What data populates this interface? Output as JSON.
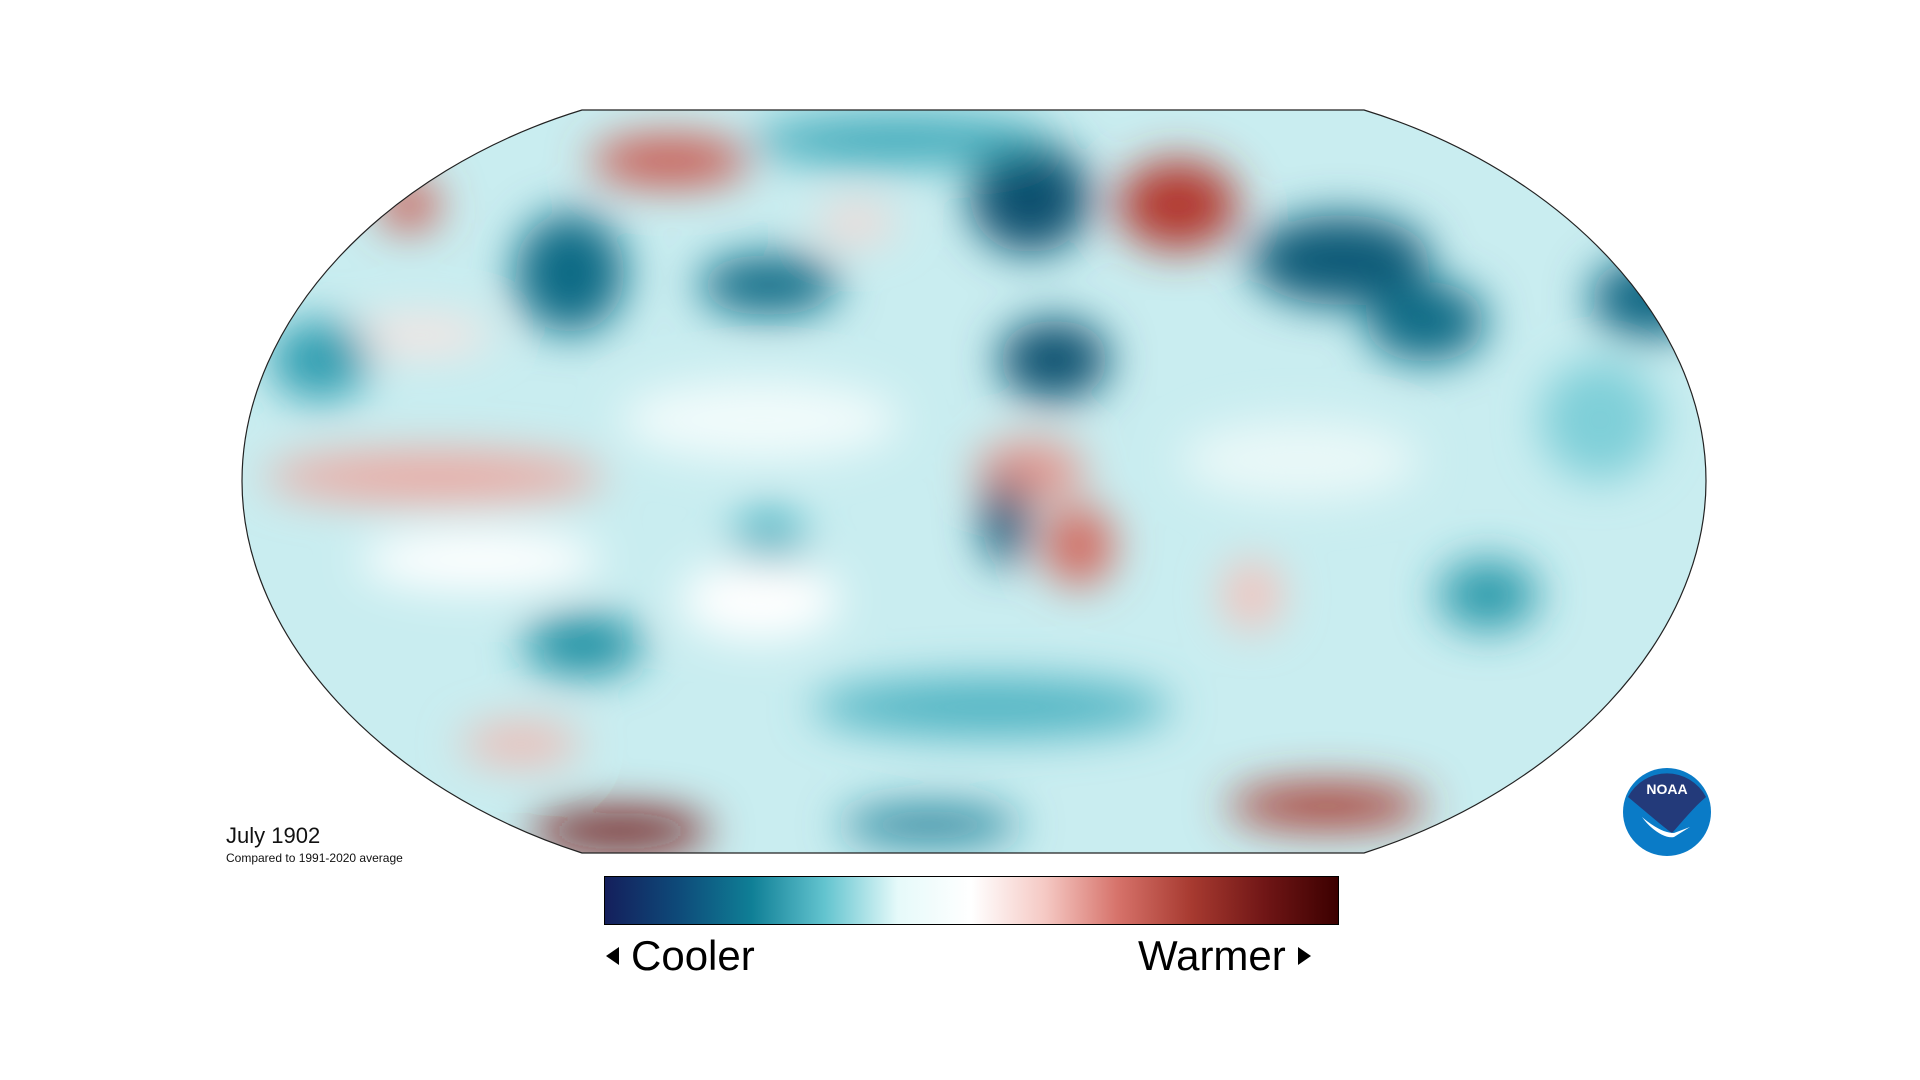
{
  "map": {
    "title": "July 1902",
    "subtitle": "Compared to 1991-2020 average",
    "projection": "Robinson",
    "variable": "temperature anomaly"
  },
  "legend": {
    "cooler_label": "Cooler",
    "warmer_label": "Warmer",
    "colors": [
      "#141f5c",
      "#0e4a79",
      "#0f7f96",
      "#63c4cf",
      "#e6fafa",
      "#ffffff",
      "#f5c9c4",
      "#d6726a",
      "#a73a30",
      "#701616",
      "#3c0000"
    ]
  },
  "logo": {
    "text": "NOAA",
    "colors": {
      "top": "#233a7a",
      "bottom": "#0a7bc7"
    }
  },
  "colors": {
    "base": "#c9edf0",
    "warm": "#c9544c",
    "cool": "#0f6880",
    "coast": "#777777"
  }
}
